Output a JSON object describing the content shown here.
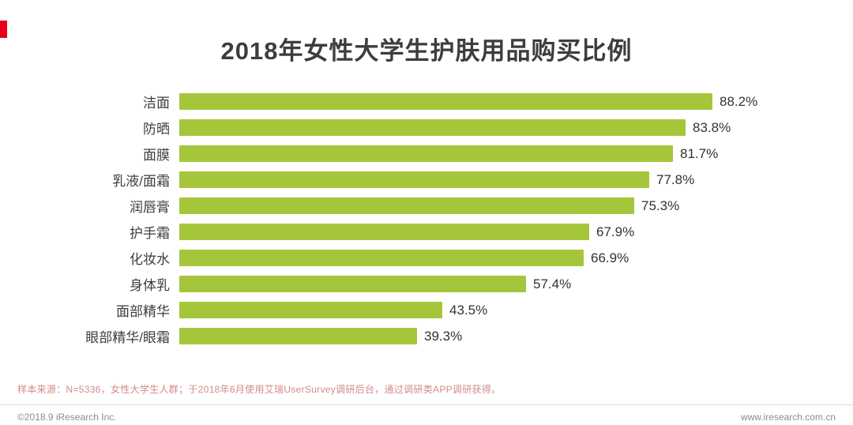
{
  "title": "2018年女性大学生护肤用品购买比例",
  "chart_data": {
    "type": "bar",
    "orientation": "horizontal",
    "title": "2018年女性大学生护肤用品购买比例",
    "categories": [
      "洁面",
      "防晒",
      "面膜",
      "乳液/面霜",
      "润唇膏",
      "护手霜",
      "化妆水",
      "身体乳",
      "面部精华",
      "眼部精华/眼霜"
    ],
    "values": [
      88.2,
      83.8,
      81.7,
      77.8,
      75.3,
      67.9,
      66.9,
      57.4,
      43.5,
      39.3
    ],
    "value_suffix": "%",
    "xlim": [
      0,
      100
    ],
    "bar_color": "#a5c63b",
    "grid": false,
    "legend": "none"
  },
  "footnote": "样本来源：N=5336，女性大学生人群；于2018年6月使用艾瑞UserSurvey调研后台，通过调研类APP调研获得。",
  "footer": {
    "left": "©2018.9 iResearch Inc.",
    "right": "www.iresearch.com.cn"
  },
  "colors": {
    "accent_red": "#e6001e",
    "bar_green": "#a5c63b",
    "title_text": "#3d3d3d",
    "footnote_pink": "#d28a8a",
    "footer_gray": "#8c8c8c"
  }
}
